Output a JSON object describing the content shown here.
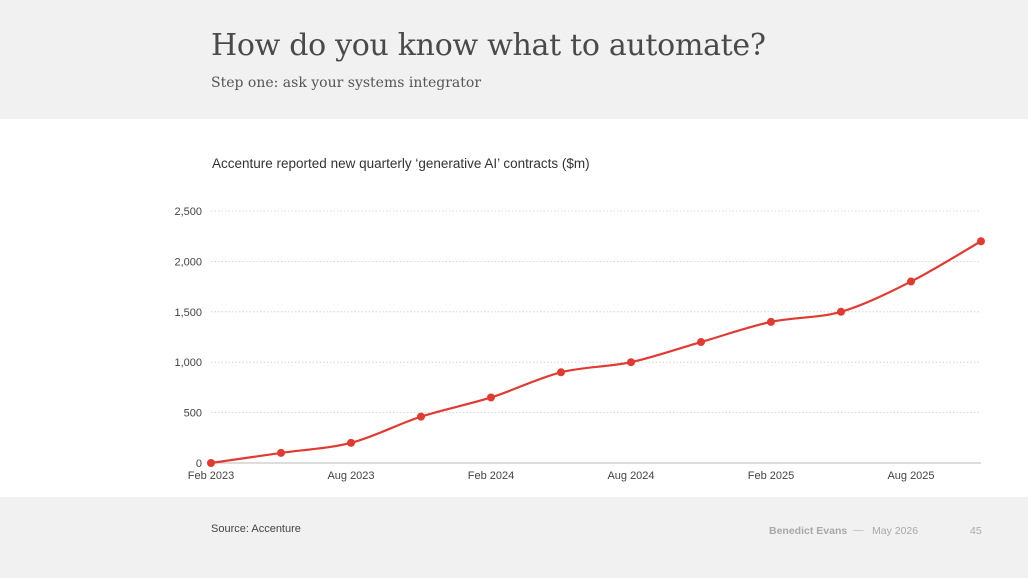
{
  "slide": {
    "title": "How do you know what to automate?",
    "subtitle": "Step one: ask your systems integrator",
    "source": "Source: Accenture",
    "author": "Benedict Evans",
    "separator": "—",
    "date": "May 2026",
    "page_number": "45"
  },
  "colors": {
    "header_band": "#f1f1f1",
    "footer_band": "#f1f1f1",
    "series_line": "#e03a31",
    "gridline": "#cccccc",
    "axis": "#bbbbbb"
  },
  "chart_data": {
    "type": "line",
    "title": "Accenture reported new quarterly ‘generative AI’ contracts ($m)",
    "xlabel": "",
    "ylabel": "",
    "x": [
      "Feb 2023",
      "May 2023",
      "Aug 2023",
      "Nov 2023",
      "Feb 2024",
      "May 2024",
      "Aug 2024",
      "Nov 2024",
      "Feb 2025",
      "May 2025",
      "Aug 2025",
      "Nov 2025"
    ],
    "x_tick_labels": [
      "Feb 2023",
      "Aug 2023",
      "Feb 2024",
      "Aug 2024",
      "Feb 2025",
      "Aug 2025"
    ],
    "series": [
      {
        "values": [
          0,
          100,
          200,
          460,
          650,
          900,
          1000,
          1200,
          1400,
          1500,
          1800,
          2200
        ]
      }
    ],
    "ylim": [
      0,
      2500
    ],
    "y_ticks": [
      0,
      500,
      1000,
      1500,
      2000,
      2500
    ],
    "y_tick_labels": [
      "0",
      "500",
      "1,000",
      "1,500",
      "2,000",
      "2,500"
    ],
    "grid": "horizontal dotted",
    "legend": "none"
  }
}
